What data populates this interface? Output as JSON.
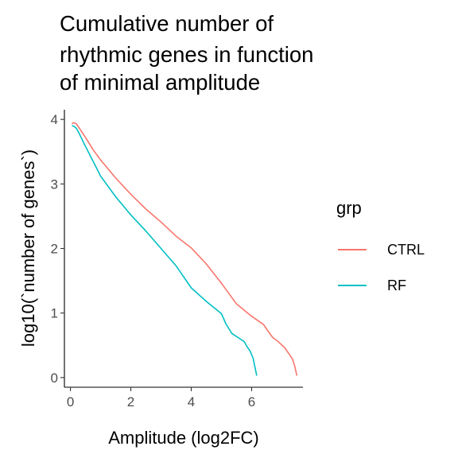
{
  "chart_data": {
    "type": "line",
    "title_lines": [
      "Cumulative number of",
      "rhythmic genes in function",
      "of minimal amplitude"
    ],
    "xlabel": "Amplitude (log2FC)",
    "ylabel": "log10(`number of genes`)",
    "xlim": [
      -0.2,
      7.7
    ],
    "ylim": [
      -0.15,
      4.15
    ],
    "xticks": [
      0,
      2,
      4,
      6
    ],
    "yticks": [
      0,
      1,
      2,
      3,
      4
    ],
    "grid": false,
    "legend": {
      "title": "grp",
      "position": "right"
    },
    "series": [
      {
        "name": "CTRL",
        "color": "#F8766D",
        "points": [
          [
            0.05,
            3.93
          ],
          [
            0.1,
            3.95
          ],
          [
            0.2,
            3.93
          ],
          [
            0.3,
            3.86
          ],
          [
            0.5,
            3.72
          ],
          [
            0.75,
            3.53
          ],
          [
            1.0,
            3.37
          ],
          [
            1.5,
            3.09
          ],
          [
            2.0,
            2.84
          ],
          [
            2.5,
            2.61
          ],
          [
            3.0,
            2.41
          ],
          [
            3.5,
            2.19
          ],
          [
            4.0,
            2.01
          ],
          [
            4.5,
            1.76
          ],
          [
            5.0,
            1.46
          ],
          [
            5.5,
            1.14
          ],
          [
            6.0,
            0.95
          ],
          [
            6.4,
            0.82
          ],
          [
            6.5,
            0.75
          ],
          [
            6.7,
            0.62
          ],
          [
            6.85,
            0.57
          ],
          [
            7.1,
            0.46
          ],
          [
            7.35,
            0.29
          ],
          [
            7.42,
            0.19
          ],
          [
            7.5,
            0.03
          ]
        ]
      },
      {
        "name": "RF",
        "color": "#00BFC4",
        "points": [
          [
            0.05,
            3.9
          ],
          [
            0.1,
            3.9
          ],
          [
            0.2,
            3.86
          ],
          [
            0.3,
            3.77
          ],
          [
            0.5,
            3.58
          ],
          [
            0.75,
            3.35
          ],
          [
            1.0,
            3.12
          ],
          [
            1.5,
            2.8
          ],
          [
            2.0,
            2.52
          ],
          [
            2.5,
            2.27
          ],
          [
            3.0,
            2.0
          ],
          [
            3.5,
            1.73
          ],
          [
            4.0,
            1.39
          ],
          [
            4.5,
            1.18
          ],
          [
            5.0,
            0.99
          ],
          [
            5.15,
            0.83
          ],
          [
            5.35,
            0.68
          ],
          [
            5.55,
            0.62
          ],
          [
            5.75,
            0.56
          ],
          [
            5.85,
            0.48
          ],
          [
            5.95,
            0.41
          ],
          [
            6.05,
            0.3
          ],
          [
            6.12,
            0.14
          ],
          [
            6.17,
            0.03
          ]
        ]
      }
    ]
  }
}
